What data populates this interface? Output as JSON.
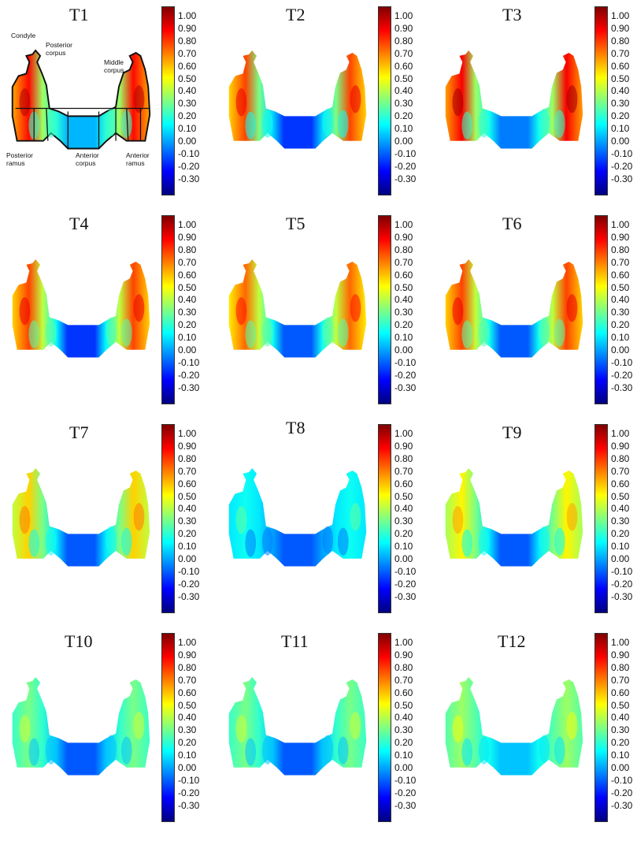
{
  "colormap": {
    "min": -0.35,
    "max": 1.07,
    "stops": [
      "#00007f",
      "#0000ff",
      "#0080ff",
      "#00ffff",
      "#80ff80",
      "#ffff00",
      "#ff8000",
      "#ff0000",
      "#7f0000"
    ],
    "ticks": [
      "1.00",
      "0.90",
      "0.80",
      "0.70",
      "0.60",
      "0.50",
      "0.40",
      "0.30",
      "0.20",
      "0.10",
      "0.00",
      "-0.10",
      "-0.20",
      "-0.30"
    ]
  },
  "region_labels": {
    "condyle": "Condyle",
    "posterior_corpus": "Posterior\ncorpus",
    "middle_corpus": "Middle\ncorpus",
    "posterior_ramus": "Posterior\nramus",
    "anterior_corpus": "Anterior\ncorpus",
    "anterior_ramus": "Anterior\nramus"
  },
  "panels": [
    {
      "title": "T1",
      "ramus": 0.88,
      "mid": 0.4,
      "front": 0.08
    },
    {
      "title": "T2",
      "ramus": 0.8,
      "mid": 0.35,
      "front": -0.1
    },
    {
      "title": "T3",
      "ramus": 0.9,
      "mid": 0.4,
      "front": 0.0
    },
    {
      "title": "T4",
      "ramus": 0.8,
      "mid": 0.45,
      "front": -0.1
    },
    {
      "title": "T5",
      "ramus": 0.75,
      "mid": 0.45,
      "front": -0.05
    },
    {
      "title": "T6",
      "ramus": 0.8,
      "mid": 0.45,
      "front": -0.05
    },
    {
      "title": "T7",
      "ramus": 0.6,
      "mid": 0.35,
      "front": -0.05
    },
    {
      "title": "T8",
      "ramus": 0.2,
      "mid": 0.15,
      "front": -0.05
    },
    {
      "title": "T9",
      "ramus": 0.55,
      "mid": 0.35,
      "front": -0.05
    },
    {
      "title": "T10",
      "ramus": 0.35,
      "mid": 0.25,
      "front": -0.05
    },
    {
      "title": "T11",
      "ramus": 0.35,
      "mid": 0.25,
      "front": -0.05
    },
    {
      "title": "T12",
      "ramus": 0.4,
      "mid": 0.3,
      "front": 0.1
    }
  ]
}
